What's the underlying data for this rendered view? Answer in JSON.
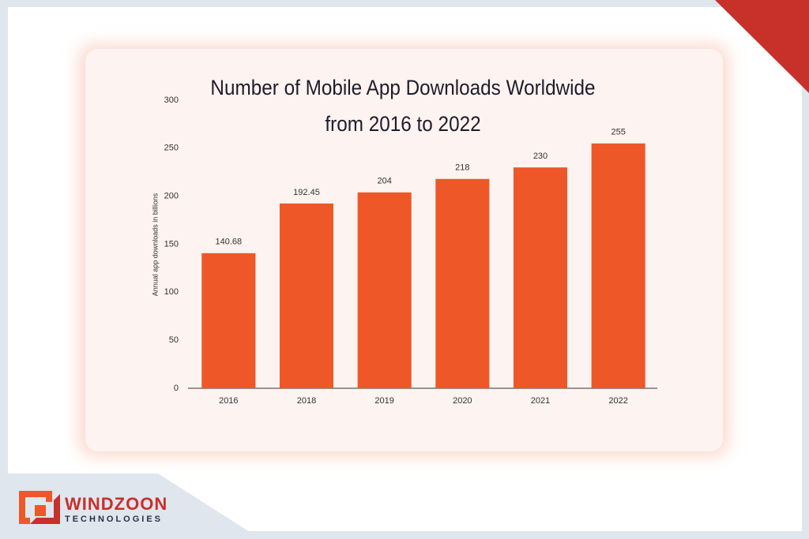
{
  "chart_data": {
    "type": "bar",
    "title": "Number of Mobile App Downloads Worldwide from 2016 to 2022",
    "y_label": "Annual app downloads in billions",
    "categories": [
      "2016",
      "2018",
      "2019",
      "2020",
      "2021",
      "2022"
    ],
    "values": [
      140.68,
      192.45,
      204,
      218,
      230,
      255
    ],
    "color": "#ee5727",
    "ylim": [
      0,
      300
    ],
    "yticks": [
      0,
      50,
      100,
      150,
      200,
      250,
      300
    ],
    "grid": false
  },
  "logo": {
    "name": "WINDZOON",
    "tagline": "TECHNOLOGIES"
  }
}
